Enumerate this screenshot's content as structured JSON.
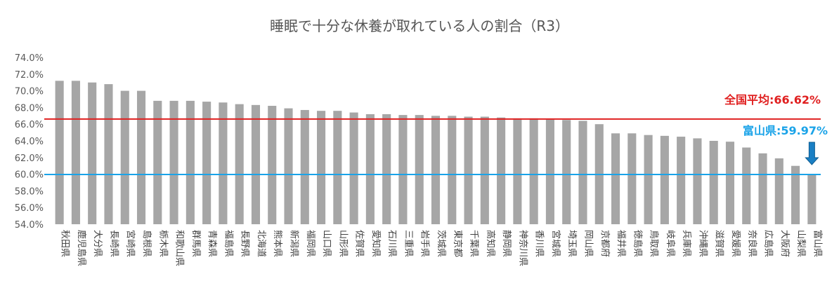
{
  "chart_data": {
    "type": "bar",
    "title": "睡眠で十分な休養が取れている人の割合（R3）",
    "xlabel": "",
    "ylabel": "",
    "ylim": [
      54.0,
      74.0
    ],
    "yticks": [
      "54.0%",
      "56.0%",
      "58.0%",
      "60.0%",
      "62.0%",
      "64.0%",
      "66.0%",
      "68.0%",
      "70.0%",
      "72.0%",
      "74.0%"
    ],
    "grid": false,
    "categories": [
      "秋田県",
      "鹿児島県",
      "大分県",
      "長崎県",
      "宮崎県",
      "島根県",
      "栃木県",
      "和歌山県",
      "群馬県",
      "青森県",
      "福島県",
      "長野県",
      "北海道",
      "熊本県",
      "新潟県",
      "福岡県",
      "山口県",
      "山形県",
      "佐賀県",
      "愛知県",
      "石川県",
      "三重県",
      "岩手県",
      "茨城県",
      "東京都",
      "千葉県",
      "高知県",
      "静岡県",
      "神奈川県",
      "香川県",
      "宮城県",
      "埼玉県",
      "岡山県",
      "京都府",
      "福井県",
      "徳島県",
      "鳥取県",
      "岐阜県",
      "兵庫県",
      "沖縄県",
      "滋賀県",
      "愛媛県",
      "奈良県",
      "広島県",
      "大阪府",
      "山梨県",
      "富山県"
    ],
    "values": [
      71.2,
      71.2,
      71.0,
      70.8,
      70.0,
      70.0,
      68.8,
      68.8,
      68.8,
      68.7,
      68.6,
      68.4,
      68.3,
      68.2,
      67.9,
      67.7,
      67.6,
      67.6,
      67.4,
      67.2,
      67.2,
      67.1,
      67.1,
      67.0,
      67.0,
      66.9,
      66.9,
      66.8,
      66.7,
      66.7,
      66.6,
      66.5,
      66.4,
      66.0,
      64.9,
      64.9,
      64.7,
      64.6,
      64.5,
      64.3,
      64.0,
      63.9,
      63.2,
      62.5,
      61.9,
      61.0,
      59.97
    ],
    "bar_color": "#a6a6a6",
    "reference_lines": [
      {
        "label": "全国平均:66.62%",
        "value": 66.62,
        "color": "#e02020"
      },
      {
        "label": "富山県:59.97%",
        "value": 59.97,
        "color": "#1aa3e8"
      }
    ],
    "arrow_color": "#1a7fc4"
  }
}
